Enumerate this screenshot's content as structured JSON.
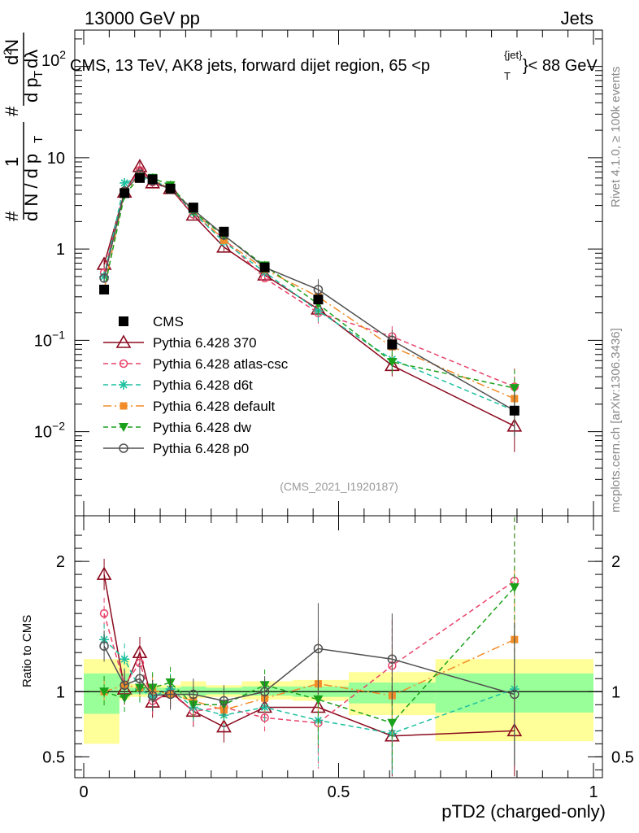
{
  "header": {
    "left": "13000 GeV pp",
    "right": "Jets",
    "plot_title": "CMS, 13 TeV, AK8 jets, forward dijet region, 65 <p",
    "plot_title_sup": "{jet}",
    "plot_title_sub": "T",
    "plot_title_end": "}< 88 GeV",
    "side_top": "Rivet 4.1.0, ≥ 100k events",
    "side_bottom": "mcplots.cern.ch [arXiv:1306.3436]",
    "analysis_id": "(CMS_2021_I1920187)"
  },
  "main_ylabel": {
    "hash": "#",
    "one": "1",
    "denom_a": "d N / d p",
    "denom_a_sub": "T",
    "num_b": "d",
    "num_b_sup": "2",
    "num_b_n": "N",
    "denom_b": "d p",
    "denom_b_sub": "T",
    "denom_b_end": "dλ"
  },
  "ratio_ylabel": "Ratio to CMS",
  "colors": {
    "CMS": "#000000",
    "370": "#8b0a1e",
    "atlas": "#e8436a",
    "d6t": "#1ec1a0",
    "default": "#f28c28",
    "dw": "#1aa11a",
    "p0": "#505050",
    "band_yellow": "#ffff99",
    "band_green": "#99ff99"
  },
  "chart_data": [
    {
      "type": "line",
      "panel": "main",
      "xlabel": "pTD2 (charged-only)",
      "xlim": [
        -0.02,
        1.0
      ],
      "ylim": [
        0.0012,
        250
      ],
      "yscale": "log",
      "y_ticks": [
        {
          "v": 0.01,
          "m": "10",
          "e": "−2"
        },
        {
          "v": 0.1,
          "m": "10",
          "e": "−1"
        },
        {
          "v": 1,
          "m": "1",
          "e": ""
        },
        {
          "v": 10,
          "m": "10",
          "e": ""
        },
        {
          "v": 100,
          "m": "10",
          "e": "2"
        }
      ],
      "x": [
        0.04,
        0.08,
        0.11,
        0.135,
        0.17,
        0.215,
        0.275,
        0.355,
        0.46,
        0.605,
        0.845
      ],
      "series": [
        {
          "name": "CMS",
          "key": "CMS",
          "marker": "square",
          "dash": "",
          "values": [
            0.36,
            4.1,
            6.0,
            5.8,
            4.6,
            2.85,
            1.55,
            0.63,
            0.28,
            0.09,
            0.017
          ]
        },
        {
          "name": "Pythia 6.428 370",
          "key": "370",
          "marker": "triangle-open",
          "dash": "",
          "values": [
            0.68,
            4.2,
            8.0,
            5.3,
            4.6,
            2.35,
            1.05,
            0.52,
            0.22,
            0.053,
            0.0115
          ]
        },
        {
          "name": "Pythia 6.428 atlas-csc",
          "key": "atlas",
          "marker": "circle-open",
          "dash": "6,4",
          "values": [
            0.55,
            4.3,
            7.3,
            5.4,
            4.55,
            2.4,
            1.3,
            0.48,
            0.2,
            0.11,
            0.031
          ]
        },
        {
          "name": "Pythia 6.428 d6t",
          "key": "d6t",
          "marker": "star",
          "dash": "6,4",
          "values": [
            0.5,
            5.3,
            6.1,
            5.6,
            4.7,
            2.5,
            1.2,
            0.56,
            0.21,
            0.062,
            0.017
          ]
        },
        {
          "name": "Pythia 6.428 default",
          "key": "default",
          "marker": "square-small",
          "dash": "10,4,2,4",
          "values": [
            0.36,
            4.3,
            6.2,
            5.85,
            4.5,
            2.65,
            1.25,
            0.6,
            0.3,
            0.085,
            0.023
          ]
        },
        {
          "name": "Pythia 6.428 dw",
          "key": "dw",
          "marker": "triangle-down",
          "dash": "6,4",
          "values": [
            0.36,
            3.9,
            6.2,
            6.0,
            5.0,
            2.55,
            1.4,
            0.66,
            0.25,
            0.058,
            0.03
          ]
        },
        {
          "name": "Pythia 6.428 p0",
          "key": "p0",
          "marker": "circle-dot",
          "dash": "",
          "values": [
            0.48,
            4.3,
            6.6,
            5.6,
            4.5,
            2.7,
            1.42,
            0.63,
            0.36,
            0.1,
            0.017
          ]
        }
      ]
    },
    {
      "type": "line",
      "panel": "ratio",
      "ylabel": "Ratio to CMS",
      "xlabel": "pTD2 (charged-only)",
      "xlim": [
        -0.02,
        1.0
      ],
      "ylim": [
        0.34,
        2.35
      ],
      "x_ticks": [
        {
          "v": 0,
          "label": "0"
        },
        {
          "v": 0.5,
          "label": "0.5"
        },
        {
          "v": 1,
          "label": "1"
        }
      ],
      "y_ticks": [
        {
          "v": 0.5,
          "label": "0.5"
        },
        {
          "v": 1,
          "label": "1"
        },
        {
          "v": 2,
          "label": "2"
        }
      ],
      "bands": [
        {
          "x0": 0.0,
          "x1": 0.07,
          "y_lo": 0.6,
          "y_hi": 1.25,
          "g_lo": 0.83,
          "g_hi": 1.14
        },
        {
          "x0": 0.07,
          "x1": 0.09,
          "y_lo": 0.94,
          "y_hi": 1.25,
          "g_lo": 0.96,
          "g_hi": 1.14
        },
        {
          "x0": 0.09,
          "x1": 0.125,
          "y_lo": 0.96,
          "y_hi": 1.06,
          "g_lo": 0.98,
          "g_hi": 1.03
        },
        {
          "x0": 0.125,
          "x1": 0.19,
          "y_lo": 0.97,
          "y_hi": 1.05,
          "g_lo": 0.98,
          "g_hi": 1.03
        },
        {
          "x0": 0.19,
          "x1": 0.24,
          "y_lo": 0.95,
          "y_hi": 1.08,
          "g_lo": 0.97,
          "g_hi": 1.04
        },
        {
          "x0": 0.24,
          "x1": 0.31,
          "y_lo": 0.96,
          "y_hi": 1.05,
          "g_lo": 0.98,
          "g_hi": 1.03
        },
        {
          "x0": 0.31,
          "x1": 0.41,
          "y_lo": 0.94,
          "y_hi": 1.08,
          "g_lo": 0.97,
          "g_hi": 1.04
        },
        {
          "x0": 0.41,
          "x1": 0.52,
          "y_lo": 0.93,
          "y_hi": 1.09,
          "g_lo": 0.96,
          "g_hi": 1.04
        },
        {
          "x0": 0.52,
          "x1": 0.69,
          "y_lo": 0.82,
          "y_hi": 1.15,
          "g_lo": 0.91,
          "g_hi": 1.07
        },
        {
          "x0": 0.69,
          "x1": 1.0,
          "y_lo": 0.62,
          "y_hi": 1.25,
          "g_lo": 0.84,
          "g_hi": 1.14
        }
      ],
      "series": [
        {
          "key": "370",
          "values": [
            1.9,
            1.02,
            1.3,
            0.92,
            1.0,
            0.85,
            0.73,
            0.88,
            0.88,
            0.66,
            0.7
          ]
        },
        {
          "key": "atlas",
          "values": [
            1.6,
            1.05,
            1.22,
            0.93,
            0.99,
            0.85,
            0.88,
            0.8,
            0.76,
            1.2,
            1.85
          ]
        },
        {
          "key": "d6t",
          "values": [
            1.4,
            1.25,
            1.02,
            0.96,
            1.02,
            0.88,
            0.82,
            0.88,
            0.78,
            0.68,
            1.02
          ]
        },
        {
          "key": "default",
          "values": [
            1.0,
            1.05,
            1.03,
            1.01,
            0.98,
            0.93,
            0.86,
            0.95,
            1.06,
            0.97,
            1.4
          ]
        },
        {
          "key": "dw",
          "values": [
            1.0,
            0.95,
            1.03,
            1.03,
            1.07,
            0.9,
            0.9,
            1.05,
            0.94,
            0.76,
            1.8
          ]
        },
        {
          "key": "p0",
          "values": [
            1.35,
            1.05,
            1.1,
            0.97,
            0.98,
            0.98,
            0.93,
            1.0,
            1.33,
            1.25,
            0.98
          ]
        }
      ]
    }
  ]
}
